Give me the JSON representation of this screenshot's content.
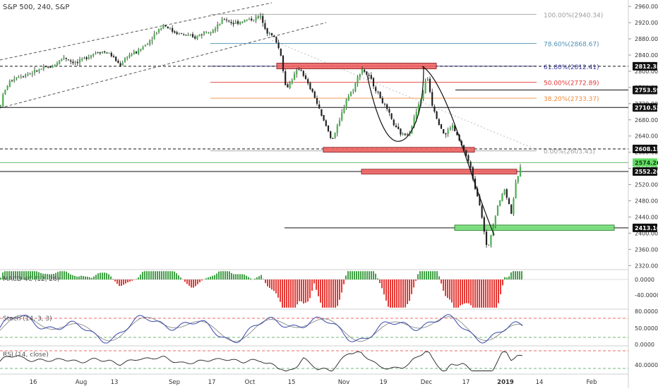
{
  "header": {
    "title": "S&P 500, 240, S&P"
  },
  "price_axis": {
    "ticks": [
      "2960.00",
      "2920.00",
      "2880.00",
      "2840.00",
      "2800.00",
      "2760.00",
      "2720.00",
      "2680.00",
      "2640.00",
      "2600.00",
      "2560.00",
      "2520.00",
      "2480.00",
      "2440.00",
      "2400.00",
      "2360.00",
      "2320.00"
    ],
    "badges": [
      {
        "label": "2812.38",
        "value": 2812.38,
        "style": "dark"
      },
      {
        "label": "2753.59",
        "value": 2753.59,
        "style": "dark"
      },
      {
        "label": "2710.53",
        "value": 2710.53,
        "style": "dark"
      },
      {
        "label": "2608.15",
        "value": 2608.15,
        "style": "dark"
      },
      {
        "label": "2574.26",
        "value": 2574.26,
        "style": "green"
      },
      {
        "label": "2552.26",
        "value": 2552.26,
        "style": "dark"
      },
      {
        "label": "2413.16",
        "value": 2413.16,
        "style": "dark"
      }
    ]
  },
  "fibonacci": [
    {
      "label": "100.00%(2940.34)",
      "value": 2940.34,
      "color": "#9e9e9e"
    },
    {
      "label": "78.60%(2868.67)",
      "value": 2868.67,
      "color": "#4f8fb5"
    },
    {
      "label": "61.80%(2812.41)",
      "value": 2812.41,
      "color": "#3a3aa8"
    },
    {
      "label": "50.00%(2772.89)",
      "value": 2772.89,
      "color": "#e53935"
    },
    {
      "label": "38.20%(2733.37)",
      "value": 2733.37,
      "color": "#f08c3a"
    },
    {
      "label": "0.00%(2603.43)",
      "value": 2603.43,
      "color": "#9e9e9e"
    }
  ],
  "time_axis": {
    "labels": [
      "16",
      "Aug",
      "13",
      "Sep",
      "17",
      "Oct",
      "15",
      "Nov",
      "19",
      "Dec",
      "17",
      "2019",
      "14",
      "Feb"
    ]
  },
  "indicators": {
    "macd": {
      "label": "MACD 4C (12, 26)",
      "ticks": [
        "0.0000",
        "-40.0000"
      ]
    },
    "stoch": {
      "label": "Stoch (14, 3, 3)",
      "ticks": [
        "80.0000",
        "50.0000",
        "0.0000"
      ]
    },
    "rsi": {
      "label": "RSI (14, close)",
      "ticks": [
        "40.0000"
      ]
    }
  },
  "colors": {
    "up": "#26a69a",
    "down": "#ef5350",
    "zone_red": "#ef5350",
    "zone_green": "#66dd66",
    "stoch_k": "#3949ab",
    "stoch_d": "#8a8a8a"
  },
  "chart_data": {
    "type": "candlestick",
    "title": "S&P 500, 240, S&P",
    "ylim": [
      2310,
      2975
    ],
    "x_range": [
      "Jul 2018",
      "Feb 2019"
    ],
    "path_points": [
      {
        "x": 0,
        "y": 2712
      },
      {
        "x": 5,
        "y": 2745
      },
      {
        "x": 12,
        "y": 2770
      },
      {
        "x": 20,
        "y": 2784
      },
      {
        "x": 30,
        "y": 2790
      },
      {
        "x": 45,
        "y": 2796
      },
      {
        "x": 60,
        "y": 2806
      },
      {
        "x": 75,
        "y": 2812
      },
      {
        "x": 90,
        "y": 2836
      },
      {
        "x": 100,
        "y": 2825
      },
      {
        "x": 110,
        "y": 2820
      },
      {
        "x": 125,
        "y": 2838
      },
      {
        "x": 140,
        "y": 2850
      },
      {
        "x": 155,
        "y": 2844
      },
      {
        "x": 170,
        "y": 2815
      },
      {
        "x": 180,
        "y": 2838
      },
      {
        "x": 195,
        "y": 2848
      },
      {
        "x": 210,
        "y": 2872
      },
      {
        "x": 225,
        "y": 2904
      },
      {
        "x": 232,
        "y": 2916
      },
      {
        "x": 245,
        "y": 2898
      },
      {
        "x": 260,
        "y": 2890
      },
      {
        "x": 275,
        "y": 2882
      },
      {
        "x": 290,
        "y": 2898
      },
      {
        "x": 305,
        "y": 2905
      },
      {
        "x": 318,
        "y": 2930
      },
      {
        "x": 330,
        "y": 2918
      },
      {
        "x": 345,
        "y": 2925
      },
      {
        "x": 360,
        "y": 2930
      },
      {
        "x": 370,
        "y": 2935
      },
      {
        "x": 378,
        "y": 2898
      },
      {
        "x": 390,
        "y": 2880
      },
      {
        "x": 398,
        "y": 2840
      },
      {
        "x": 405,
        "y": 2755
      },
      {
        "x": 415,
        "y": 2785
      },
      {
        "x": 425,
        "y": 2810
      },
      {
        "x": 435,
        "y": 2770
      },
      {
        "x": 445,
        "y": 2740
      },
      {
        "x": 455,
        "y": 2690
      },
      {
        "x": 463,
        "y": 2660
      },
      {
        "x": 470,
        "y": 2630
      },
      {
        "x": 480,
        "y": 2670
      },
      {
        "x": 490,
        "y": 2730
      },
      {
        "x": 500,
        "y": 2755
      },
      {
        "x": 512,
        "y": 2808
      },
      {
        "x": 525,
        "y": 2780
      },
      {
        "x": 540,
        "y": 2730
      },
      {
        "x": 552,
        "y": 2690
      },
      {
        "x": 560,
        "y": 2660
      },
      {
        "x": 570,
        "y": 2642
      },
      {
        "x": 580,
        "y": 2650
      },
      {
        "x": 590,
        "y": 2700
      },
      {
        "x": 598,
        "y": 2740
      },
      {
        "x": 605,
        "y": 2790
      },
      {
        "x": 612,
        "y": 2720
      },
      {
        "x": 620,
        "y": 2680
      },
      {
        "x": 630,
        "y": 2640
      },
      {
        "x": 640,
        "y": 2668
      },
      {
        "x": 650,
        "y": 2630
      },
      {
        "x": 658,
        "y": 2600
      },
      {
        "x": 665,
        "y": 2570
      },
      {
        "x": 672,
        "y": 2520
      },
      {
        "x": 680,
        "y": 2470
      },
      {
        "x": 686,
        "y": 2400
      },
      {
        "x": 690,
        "y": 2356
      },
      {
        "x": 697,
        "y": 2410
      },
      {
        "x": 705,
        "y": 2470
      },
      {
        "x": 715,
        "y": 2510
      },
      {
        "x": 724,
        "y": 2450
      },
      {
        "x": 732,
        "y": 2535
      },
      {
        "x": 740,
        "y": 2574
      }
    ],
    "zones": [
      {
        "label": "resistance",
        "x0": 392,
        "x1": 618,
        "y0": 2806,
        "y1": 2820,
        "color": "red"
      },
      {
        "label": "support",
        "x0": 458,
        "x1": 672,
        "y0": 2600,
        "y1": 2612,
        "color": "red"
      },
      {
        "label": "support",
        "x0": 512,
        "x1": 732,
        "y0": 2546,
        "y1": 2558,
        "color": "red"
      },
      {
        "label": "demand",
        "x0": 644,
        "x1": 870,
        "y0": 2407,
        "y1": 2420,
        "color": "green"
      }
    ]
  }
}
